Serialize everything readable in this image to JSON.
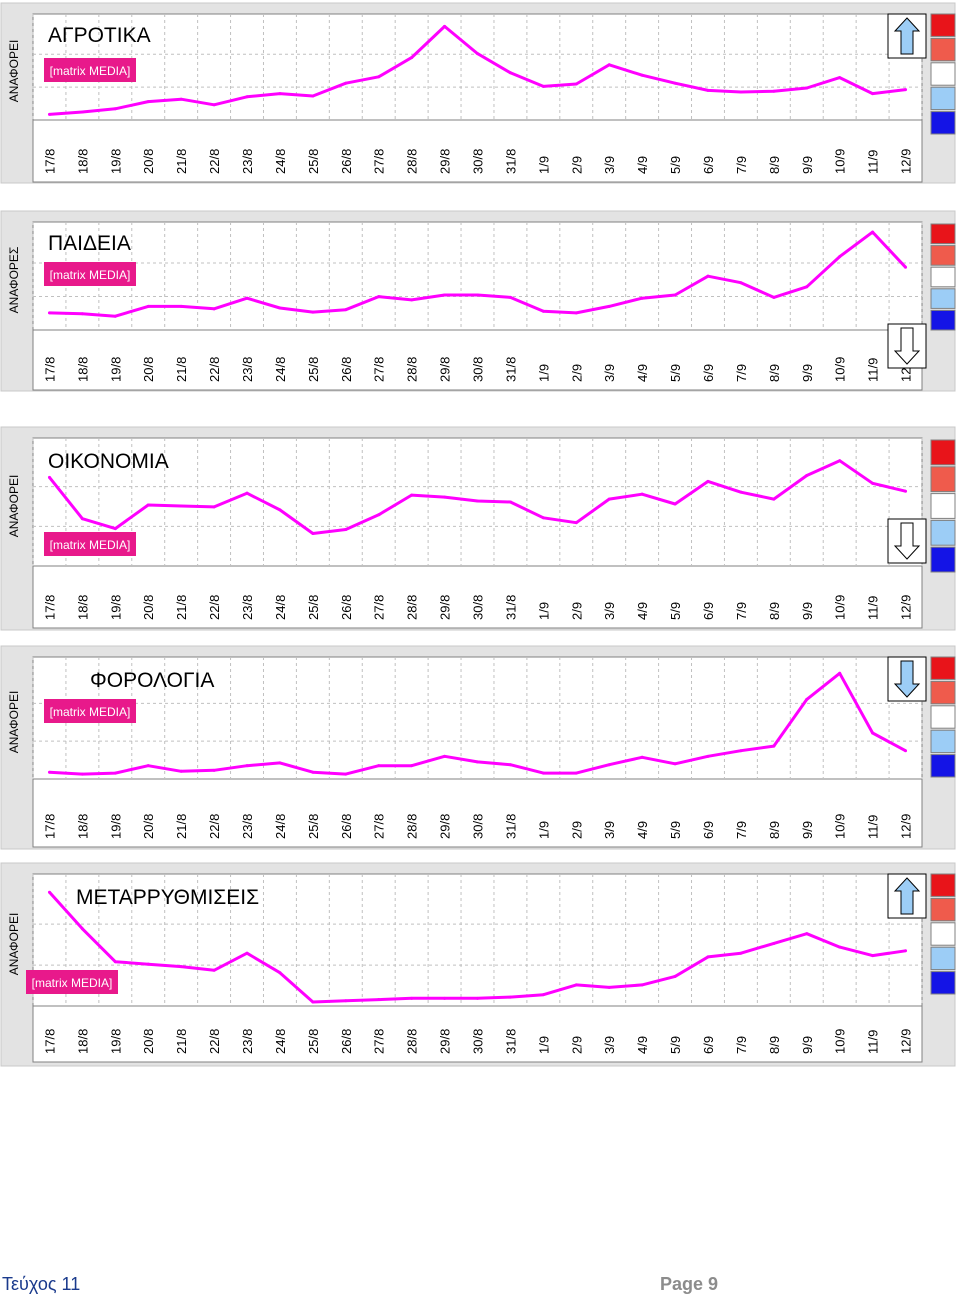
{
  "logo_text": "[matrix MEDIA]",
  "colors": {
    "line": "#ff00ff",
    "frame_bg": "#e3e3e3",
    "logo_bg": "#e8198b",
    "legend": [
      "#e8141a",
      "#ef5b4c",
      "#ffffff",
      "#9ccdf6",
      "#1414e6"
    ]
  },
  "charts": [
    {
      "title": "ΑΓΡΟΤΙΚΑ",
      "ylabel": "ΑΝΑΦΟΡΕΙ",
      "arrow": "up",
      "dates": [
        "17/8",
        "18/8",
        "19/8",
        "20/8",
        "21/8",
        "22/8",
        "23/8",
        "24/8",
        "25/8",
        "26/8",
        "27/8",
        "28/8",
        "29/8",
        "30/8",
        "31/8",
        "1/9",
        "2/9",
        "3/9",
        "4/9",
        "5/9",
        "6/9",
        "7/9",
        "8/9",
        "9/9",
        "10/9",
        "11/9",
        "12/9"
      ]
    },
    {
      "title": "ΠΑΙΔΕΙΑ",
      "ylabel": "ΑΝΑΦΟΡΕΣ",
      "arrow": "down",
      "dates": [
        "17/8",
        "18/8",
        "19/8",
        "20/8",
        "21/8",
        "22/8",
        "23/8",
        "24/8",
        "25/8",
        "26/8",
        "27/8",
        "28/8",
        "29/8",
        "30/8",
        "31/8",
        "1/9",
        "2/9",
        "3/9",
        "4/9",
        "5/9",
        "6/9",
        "7/9",
        "8/9",
        "9/9",
        "10/9",
        "11/9",
        "12/9"
      ]
    },
    {
      "title": "ΟΙΚΟΝΟΜΙΑ",
      "ylabel": "ΑΝΑΦΟΡΕΙ",
      "arrow": "down",
      "dates": [
        "17/8",
        "18/8",
        "19/8",
        "20/8",
        "21/8",
        "22/8",
        "23/8",
        "24/8",
        "25/8",
        "26/8",
        "27/8",
        "28/8",
        "29/8",
        "30/8",
        "31/8",
        "1/9",
        "2/9",
        "3/9",
        "4/9",
        "5/9",
        "6/9",
        "7/9",
        "8/9",
        "9/9",
        "10/9",
        "11/9",
        "12/9"
      ]
    },
    {
      "title": "ΦΟΡΟΛΟΓΙΑ",
      "ylabel": "ΑΝΑΦΟΡΕΙ",
      "arrow": "down",
      "dates": [
        "17/8",
        "18/8",
        "19/8",
        "20/8",
        "21/8",
        "22/8",
        "23/8",
        "24/8",
        "25/8",
        "26/8",
        "27/8",
        "28/8",
        "29/8",
        "30/8",
        "31/8",
        "1/9",
        "2/9",
        "3/9",
        "4/9",
        "5/9",
        "6/9",
        "7/9",
        "8/9",
        "9/9",
        "10/9",
        "11/9",
        "12/9"
      ]
    },
    {
      "title": "ΜΕΤΑΡΡΥΘΜΙΣΕΙΣ",
      "ylabel": "ΑΝΑΦΟΡΕΙ",
      "arrow": "up",
      "dates": [
        "17/8",
        "18/8",
        "19/8",
        "20/8",
        "21/8",
        "22/8",
        "23/8",
        "24/8",
        "25/8",
        "26/8",
        "27/8",
        "28/8",
        "29/8",
        "30/8",
        "31/8",
        "1/9",
        "2/9",
        "3/9",
        "4/9",
        "5/9",
        "6/9",
        "7/9",
        "8/9",
        "9/9",
        "10/9",
        "11/9",
        "12/9"
      ]
    }
  ],
  "chart_data": [
    {
      "type": "line",
      "title": "ΑΓΡΟΤΙΚΑ",
      "ylabel": "ΑΝΑΦΟΡΕΙ",
      "x": [
        "17/8",
        "18/8",
        "19/8",
        "20/8",
        "21/8",
        "22/8",
        "23/8",
        "24/8",
        "25/8",
        "26/8",
        "27/8",
        "28/8",
        "29/8",
        "30/8",
        "31/8",
        "1/9",
        "2/9",
        "3/9",
        "4/9",
        "5/9",
        "6/9",
        "7/9",
        "8/9",
        "9/9",
        "10/9",
        "11/9",
        "12/9"
      ],
      "series": [
        {
          "values": [
            2,
            5,
            9,
            18,
            21,
            14,
            24,
            28,
            25,
            41,
            49,
            73,
            112,
            78,
            54,
            37,
            40,
            64,
            51,
            41,
            32,
            30,
            31,
            35,
            48,
            28,
            33
          ]
        }
      ],
      "ylim": [
        0,
        120
      ],
      "grid": true
    },
    {
      "type": "line",
      "title": "ΠΑΙΔΕΙΑ",
      "ylabel": "ΑΝΑΦΟΡΕΣ",
      "x": [
        "17/8",
        "18/8",
        "19/8",
        "20/8",
        "21/8",
        "22/8",
        "23/8",
        "24/8",
        "25/8",
        "26/8",
        "27/8",
        "28/8",
        "29/8",
        "30/8",
        "31/8",
        "1/9",
        "2/9",
        "3/9",
        "4/9",
        "5/9",
        "6/9",
        "7/9",
        "8/9",
        "9/9",
        "10/9",
        "11/9",
        "12/9"
      ],
      "series": [
        {
          "values": [
            16,
            15,
            12,
            24,
            24,
            21,
            34,
            22,
            17,
            20,
            36,
            32,
            38,
            38,
            35,
            18,
            16,
            24,
            34,
            38,
            61,
            53,
            35,
            48,
            85,
            115,
            72
          ]
        }
      ],
      "ylim": [
        0,
        120
      ],
      "grid": true
    },
    {
      "type": "line",
      "title": "ΟΙΚΟΝΟΜΙΑ",
      "ylabel": "ΑΝΑΦΟΡΕΙ",
      "x": [
        "17/8",
        "18/8",
        "19/8",
        "20/8",
        "21/8",
        "22/8",
        "23/8",
        "24/8",
        "25/8",
        "26/8",
        "27/8",
        "28/8",
        "29/8",
        "30/8",
        "31/8",
        "1/9",
        "2/9",
        "3/9",
        "4/9",
        "5/9",
        "6/9",
        "7/9",
        "8/9",
        "9/9",
        "10/9",
        "11/9",
        "12/9"
      ],
      "series": [
        {
          "values": [
            86,
            44,
            34,
            58,
            57,
            56,
            70,
            53,
            29,
            33,
            48,
            68,
            66,
            62,
            61,
            45,
            40,
            64,
            69,
            59,
            82,
            71,
            64,
            88,
            103,
            80,
            72
          ]
        }
      ],
      "ylim": [
        0,
        120
      ],
      "grid": true
    },
    {
      "type": "line",
      "title": "ΦΟΡΟΛΟΓΙΑ",
      "ylabel": "ΑΝΑΦΟΡΕΙ",
      "x": [
        "17/8",
        "18/8",
        "19/8",
        "20/8",
        "21/8",
        "22/8",
        "23/8",
        "24/8",
        "25/8",
        "26/8",
        "27/8",
        "28/8",
        "29/8",
        "30/8",
        "31/8",
        "1/9",
        "2/9",
        "3/9",
        "4/9",
        "5/9",
        "6/9",
        "7/9",
        "8/9",
        "9/9",
        "10/9",
        "11/9",
        "12/9"
      ],
      "series": [
        {
          "values": [
            3,
            1,
            2,
            10,
            4,
            5,
            10,
            13,
            3,
            1,
            10,
            10,
            20,
            14,
            11,
            2,
            2,
            11,
            19,
            12,
            20,
            26,
            31,
            81,
            109,
            45,
            26
          ]
        }
      ],
      "ylim": [
        0,
        120
      ],
      "grid": true
    },
    {
      "type": "line",
      "title": "ΜΕΤΑΡΡΥΘΜΙΣΕΙΣ",
      "ylabel": "ΑΝΑΦΟΡΕΙ",
      "x": [
        "17/8",
        "18/8",
        "19/8",
        "20/8",
        "21/8",
        "22/8",
        "23/8",
        "24/8",
        "25/8",
        "26/8",
        "27/8",
        "28/8",
        "29/8",
        "30/8",
        "31/8",
        "1/9",
        "2/9",
        "3/9",
        "4/9",
        "5/9",
        "6/9",
        "7/9",
        "8/9",
        "9/9",
        "10/9",
        "11/9",
        "12/9"
      ],
      "series": [
        {
          "values": [
            90,
            60,
            33,
            31,
            29,
            26,
            40,
            24,
            0,
            1,
            2,
            3,
            3,
            3,
            4,
            6,
            14,
            12,
            14,
            21,
            37,
            40,
            48,
            56,
            45,
            38,
            42
          ]
        }
      ],
      "ylim": [
        0,
        100
      ],
      "grid": true
    }
  ],
  "footer": {
    "issue": "Τεύχος 11",
    "page": "Page 9"
  }
}
